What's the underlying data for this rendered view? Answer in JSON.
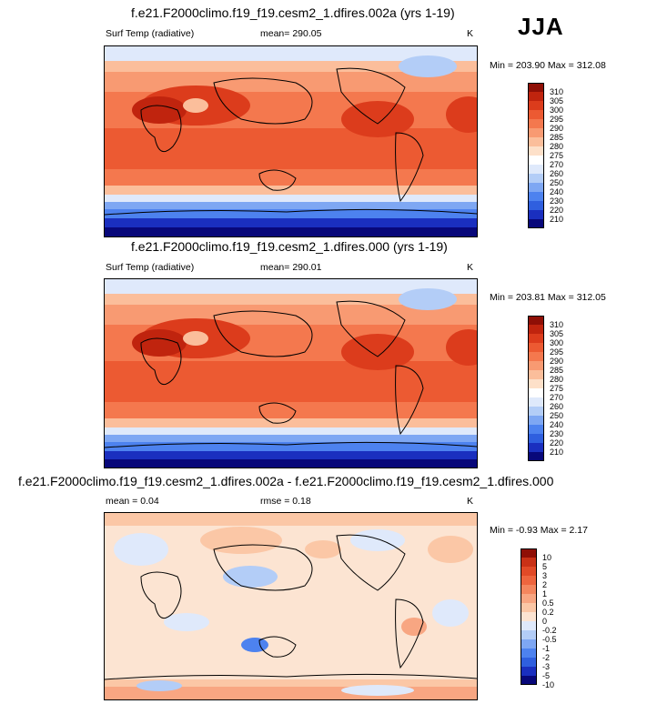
{
  "season": "JJA",
  "palette_abs": [
    "#08087a",
    "#1a2fbf",
    "#2f5fdf",
    "#4d82ef",
    "#7ea7f3",
    "#b3cdf7",
    "#dfe9fb",
    "#ffffff",
    "#fde0c9",
    "#fbbe9b",
    "#f89a72",
    "#f4784e",
    "#ec5a32",
    "#dc3c1c",
    "#c0240e",
    "#8f0f06"
  ],
  "palette_diff": [
    "#08087a",
    "#1a2fbf",
    "#2f5fdf",
    "#4d82ef",
    "#7ea7f3",
    "#b3cdf7",
    "#dfe9fb",
    "#fce4d2",
    "#fbc7a6",
    "#f8a682",
    "#f4865e",
    "#ee653e",
    "#e14a27",
    "#c93116",
    "#8f0f06"
  ],
  "panels": [
    {
      "title": "f.e21.F2000climo.f19_f19.cesm2_1.dfires.002a (yrs 1-19)",
      "variable": "Surf Temp (radiative)",
      "stat": "mean= 290.05",
      "units": "K",
      "minmax": "Min = 203.90 Max = 312.08",
      "levels": [
        "310",
        "305",
        "300",
        "295",
        "290",
        "285",
        "280",
        "275",
        "270",
        "260",
        "250",
        "240",
        "230",
        "220",
        "210"
      ]
    },
    {
      "title": "f.e21.F2000climo.f19_f19.cesm2_1.dfires.000 (yrs 1-19)",
      "variable": "Surf Temp (radiative)",
      "stat": "mean= 290.01",
      "units": "K",
      "minmax": "Min = 203.81 Max = 312.05",
      "levels": [
        "310",
        "305",
        "300",
        "295",
        "290",
        "285",
        "280",
        "275",
        "270",
        "260",
        "250",
        "240",
        "230",
        "220",
        "210"
      ]
    },
    {
      "title": "f.e21.F2000climo.f19_f19.cesm2_1.dfires.002a - f.e21.F2000climo.f19_f19.cesm2_1.dfires.000",
      "variable": "mean =   0.04",
      "stat": "rmse =   0.18",
      "units": "K",
      "minmax": "Min =  -0.93 Max =   2.17",
      "levels": [
        "10",
        "5",
        "3",
        "2",
        "1",
        "0.5",
        "0.2",
        "0",
        "-0.2",
        "-0.5",
        "-1",
        "-2",
        "-3",
        "-5",
        "-10"
      ]
    }
  ]
}
